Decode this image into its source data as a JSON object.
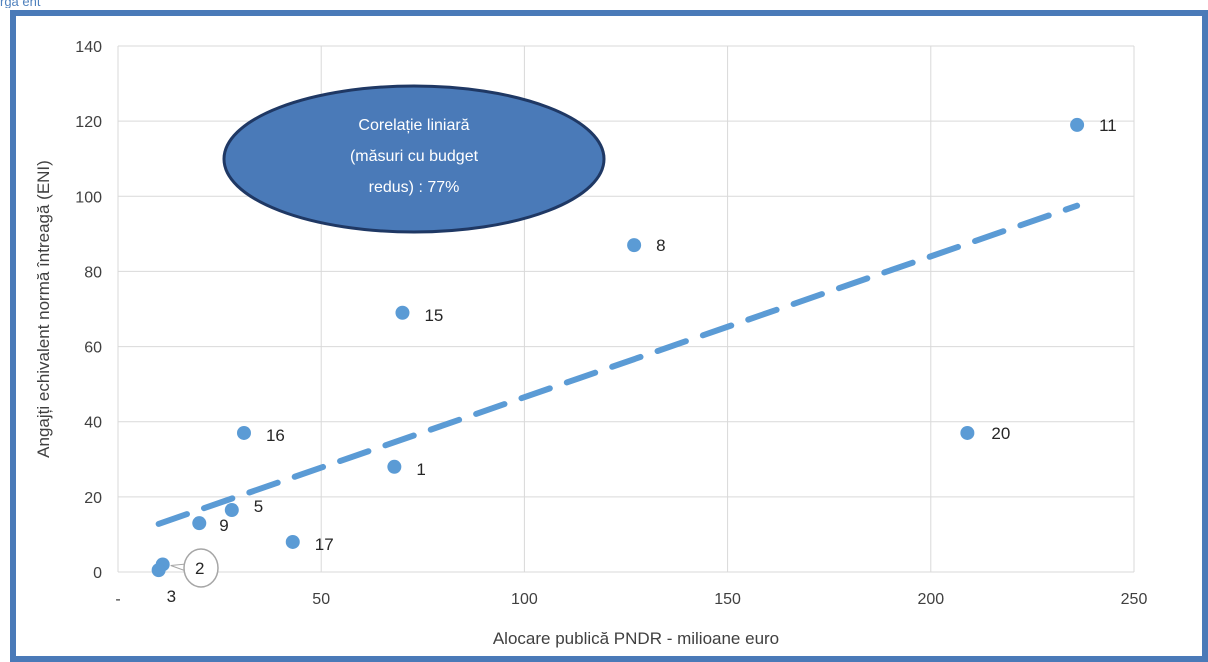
{
  "header_fragment": "rga ent ",
  "chart_data": {
    "type": "scatter",
    "xlabel": "Alocare publică PNDR - milioane euro",
    "ylabel": "Angajți echivalent normă întreagă (ENI)",
    "xlim": [
      0,
      250
    ],
    "ylim": [
      0,
      140
    ],
    "x_ticks": [
      "-",
      "50",
      "100",
      "150",
      "200",
      "250"
    ],
    "y_ticks": [
      "0",
      "20",
      "40",
      "60",
      "80",
      "100",
      "120",
      "140"
    ],
    "grid": true,
    "marker_color": "#5b9bd5",
    "trendline": {
      "style": "dashed",
      "color": "#5b9bd5",
      "x": [
        10,
        236
      ],
      "y": [
        12.8,
        97.5
      ]
    },
    "annotation": {
      "lines": [
        "Corelație liniară",
        "(măsuri cu budget",
        "redus) : 77%"
      ],
      "fill": "#4a7ab8"
    },
    "points": [
      {
        "label": "1",
        "x": 68,
        "y": 28
      },
      {
        "label": "2",
        "x": 11,
        "y": 2
      },
      {
        "label": "3",
        "x": 10,
        "y": 0.5
      },
      {
        "label": "5",
        "x": 28,
        "y": 16.5
      },
      {
        "label": "8",
        "x": 127,
        "y": 87
      },
      {
        "label": "9",
        "x": 20,
        "y": 13
      },
      {
        "label": "11",
        "x": 236,
        "y": 119
      },
      {
        "label": "15",
        "x": 70,
        "y": 69
      },
      {
        "label": "16",
        "x": 31,
        "y": 37
      },
      {
        "label": "17",
        "x": 43,
        "y": 8
      },
      {
        "label": "20",
        "x": 209,
        "y": 37
      }
    ]
  }
}
